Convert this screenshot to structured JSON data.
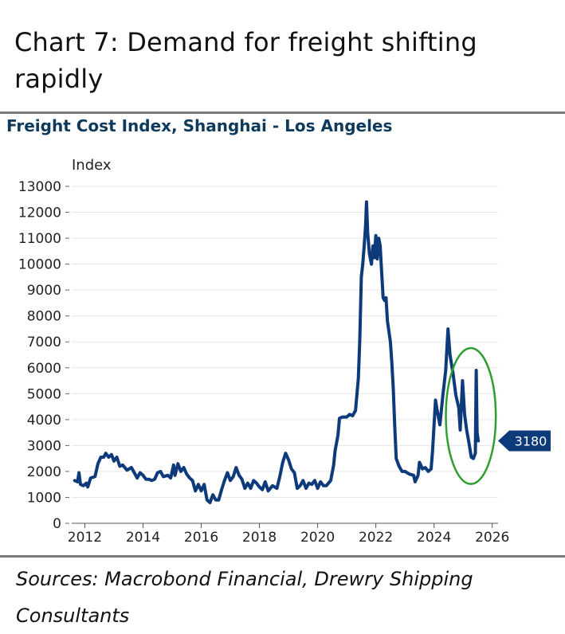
{
  "header": {
    "title": "Chart 7: Demand for freight shifting rapidly",
    "subtitle": "Freight Cost Index, Shanghai - Los Angeles"
  },
  "footer": {
    "sources": "Sources: Macrobond Financial, Drewry Shipping Consultants"
  },
  "colors": {
    "series": "#0d3a7a",
    "highlight_ellipse": "#2e9e2e",
    "last_value_tag": "#0d3a7a",
    "gridline": "#e6e6e6"
  },
  "chart_data": {
    "type": "line",
    "title": "Freight Cost Index, Shanghai - Los Angeles",
    "ylabel": "Index",
    "xlabel": "",
    "xlim": [
      2011.55,
      2026.2
    ],
    "ylim": [
      0,
      13000
    ],
    "x_ticks": [
      2012,
      2014,
      2016,
      2018,
      2020,
      2022,
      2024,
      2026
    ],
    "y_ticks": [
      0,
      1000,
      2000,
      3000,
      4000,
      5000,
      6000,
      7000,
      8000,
      9000,
      10000,
      11000,
      12000,
      13000
    ],
    "grid": "horizontal",
    "last_value_label": "3180",
    "highlight": "ellipse around 2025 values",
    "series": [
      {
        "points": [
          [
            2011.65,
            1650
          ],
          [
            2011.75,
            1600
          ],
          [
            2011.8,
            1950
          ],
          [
            2011.85,
            1500
          ],
          [
            2011.95,
            1450
          ],
          [
            2012.05,
            1550
          ],
          [
            2012.1,
            1400
          ],
          [
            2012.2,
            1750
          ],
          [
            2012.35,
            1800
          ],
          [
            2012.45,
            2300
          ],
          [
            2012.55,
            2550
          ],
          [
            2012.65,
            2550
          ],
          [
            2012.72,
            2700
          ],
          [
            2012.82,
            2550
          ],
          [
            2012.92,
            2650
          ],
          [
            2013.0,
            2400
          ],
          [
            2013.1,
            2550
          ],
          [
            2013.2,
            2200
          ],
          [
            2013.3,
            2250
          ],
          [
            2013.45,
            2050
          ],
          [
            2013.6,
            2150
          ],
          [
            2013.7,
            1950
          ],
          [
            2013.8,
            1750
          ],
          [
            2013.9,
            1950
          ],
          [
            2014.0,
            1850
          ],
          [
            2014.1,
            1700
          ],
          [
            2014.2,
            1700
          ],
          [
            2014.3,
            1650
          ],
          [
            2014.4,
            1700
          ],
          [
            2014.5,
            1950
          ],
          [
            2014.6,
            2000
          ],
          [
            2014.7,
            1800
          ],
          [
            2014.85,
            1850
          ],
          [
            2014.95,
            1750
          ],
          [
            2015.05,
            2250
          ],
          [
            2015.1,
            1850
          ],
          [
            2015.2,
            2300
          ],
          [
            2015.3,
            2000
          ],
          [
            2015.4,
            2150
          ],
          [
            2015.5,
            1900
          ],
          [
            2015.6,
            1750
          ],
          [
            2015.7,
            1650
          ],
          [
            2015.8,
            1250
          ],
          [
            2015.9,
            1500
          ],
          [
            2016.0,
            1250
          ],
          [
            2016.1,
            1500
          ],
          [
            2016.2,
            900
          ],
          [
            2016.3,
            800
          ],
          [
            2016.4,
            1100
          ],
          [
            2016.5,
            900
          ],
          [
            2016.6,
            900
          ],
          [
            2016.7,
            1300
          ],
          [
            2016.8,
            1650
          ],
          [
            2016.9,
            1950
          ],
          [
            2017.0,
            1650
          ],
          [
            2017.1,
            1800
          ],
          [
            2017.2,
            2150
          ],
          [
            2017.3,
            1850
          ],
          [
            2017.4,
            1700
          ],
          [
            2017.5,
            1350
          ],
          [
            2017.6,
            1550
          ],
          [
            2017.7,
            1350
          ],
          [
            2017.8,
            1650
          ],
          [
            2017.9,
            1550
          ],
          [
            2018.0,
            1400
          ],
          [
            2018.1,
            1300
          ],
          [
            2018.2,
            1600
          ],
          [
            2018.3,
            1250
          ],
          [
            2018.45,
            1450
          ],
          [
            2018.6,
            1350
          ],
          [
            2018.7,
            1800
          ],
          [
            2018.8,
            2350
          ],
          [
            2018.9,
            2700
          ],
          [
            2019.0,
            2450
          ],
          [
            2019.1,
            2100
          ],
          [
            2019.2,
            1950
          ],
          [
            2019.3,
            1350
          ],
          [
            2019.4,
            1450
          ],
          [
            2019.5,
            1650
          ],
          [
            2019.6,
            1350
          ],
          [
            2019.7,
            1550
          ],
          [
            2019.8,
            1500
          ],
          [
            2019.9,
            1650
          ],
          [
            2020.0,
            1350
          ],
          [
            2020.1,
            1600
          ],
          [
            2020.2,
            1450
          ],
          [
            2020.3,
            1450
          ],
          [
            2020.45,
            1650
          ],
          [
            2020.55,
            2250
          ],
          [
            2020.6,
            2800
          ],
          [
            2020.7,
            3400
          ],
          [
            2020.75,
            4050
          ],
          [
            2020.85,
            4100
          ],
          [
            2021.0,
            4100
          ],
          [
            2021.1,
            4200
          ],
          [
            2021.2,
            4150
          ],
          [
            2021.3,
            4350
          ],
          [
            2021.4,
            5600
          ],
          [
            2021.45,
            7100
          ],
          [
            2021.5,
            9500
          ],
          [
            2021.55,
            10000
          ],
          [
            2021.6,
            10700
          ],
          [
            2021.65,
            11500
          ],
          [
            2021.68,
            12400
          ],
          [
            2021.72,
            11200
          ],
          [
            2021.78,
            10400
          ],
          [
            2021.85,
            10000
          ],
          [
            2021.9,
            10700
          ],
          [
            2021.95,
            10250
          ],
          [
            2022.0,
            11100
          ],
          [
            2022.05,
            10200
          ],
          [
            2022.1,
            11000
          ],
          [
            2022.15,
            10700
          ],
          [
            2022.2,
            9700
          ],
          [
            2022.25,
            8700
          ],
          [
            2022.3,
            8600
          ],
          [
            2022.35,
            8700
          ],
          [
            2022.4,
            7800
          ],
          [
            2022.5,
            7000
          ],
          [
            2022.55,
            6200
          ],
          [
            2022.6,
            5200
          ],
          [
            2022.65,
            3700
          ],
          [
            2022.7,
            2500
          ],
          [
            2022.8,
            2200
          ],
          [
            2022.9,
            2000
          ],
          [
            2023.0,
            2000
          ],
          [
            2023.15,
            1900
          ],
          [
            2023.3,
            1850
          ],
          [
            2023.35,
            1600
          ],
          [
            2023.45,
            1850
          ],
          [
            2023.5,
            2350
          ],
          [
            2023.6,
            2100
          ],
          [
            2023.7,
            2150
          ],
          [
            2023.8,
            2000
          ],
          [
            2023.9,
            2100
          ],
          [
            2023.95,
            2800
          ],
          [
            2024.0,
            3800
          ],
          [
            2024.05,
            4750
          ],
          [
            2024.1,
            4400
          ],
          [
            2024.2,
            3800
          ],
          [
            2024.3,
            4900
          ],
          [
            2024.4,
            5900
          ],
          [
            2024.48,
            7500
          ],
          [
            2024.55,
            6500
          ],
          [
            2024.65,
            5800
          ],
          [
            2024.75,
            4950
          ],
          [
            2024.85,
            4450
          ],
          [
            2024.9,
            3600
          ],
          [
            2024.98,
            5500
          ],
          [
            2025.05,
            4200
          ],
          [
            2025.12,
            3600
          ],
          [
            2025.2,
            3100
          ],
          [
            2025.28,
            2550
          ],
          [
            2025.35,
            2500
          ],
          [
            2025.42,
            2700
          ],
          [
            2025.45,
            5900
          ],
          [
            2025.48,
            3500
          ],
          [
            2025.52,
            3180
          ]
        ]
      }
    ]
  }
}
